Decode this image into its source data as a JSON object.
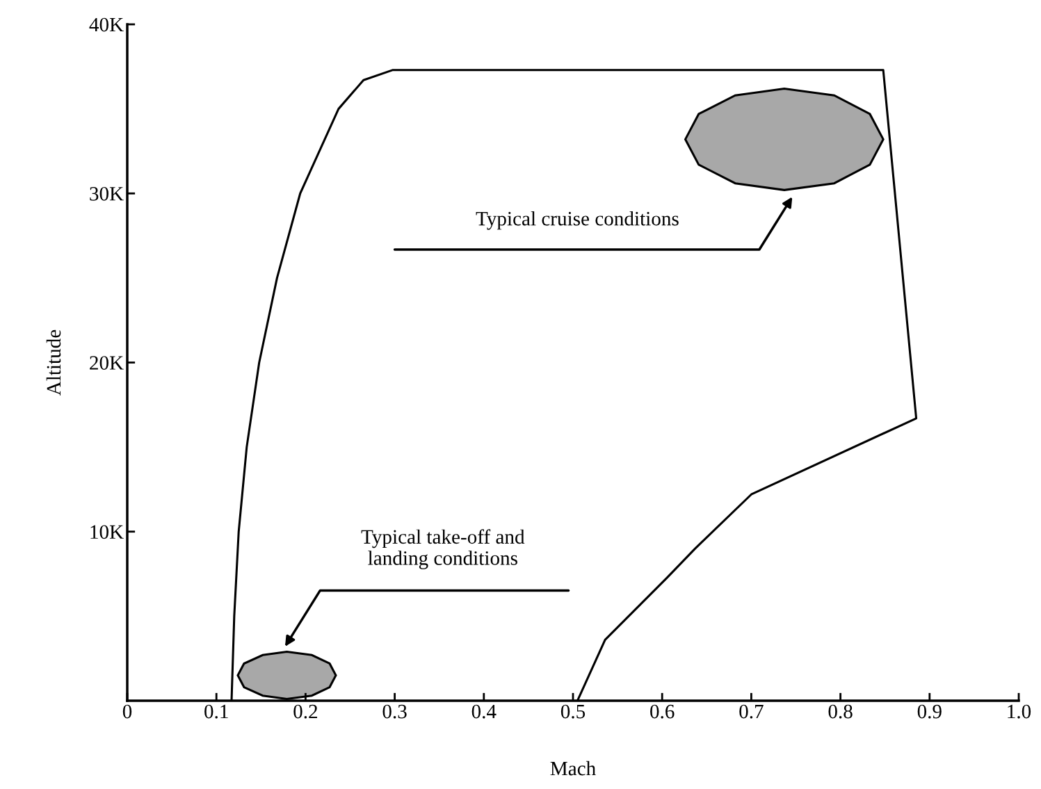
{
  "chart_data": {
    "type": "line",
    "xlabel": "Mach",
    "ylabel": "Altitude",
    "xlim": [
      0,
      1.0
    ],
    "ylim": [
      0,
      40000
    ],
    "xticks": [
      0,
      0.1,
      0.2,
      0.3,
      0.4,
      0.5,
      0.6,
      0.7,
      0.8,
      0.9,
      {
        "value": 1.0,
        "label": "1.0"
      }
    ],
    "yticks": [
      {
        "value": 10000,
        "label": "10K"
      },
      {
        "value": 20000,
        "label": "20K"
      },
      {
        "value": 30000,
        "label": "30K"
      },
      {
        "value": 40000,
        "label": "40K"
      }
    ],
    "grid": false,
    "legend": false,
    "marker": "none",
    "line_style": "solid",
    "series": [
      {
        "color": "#000000",
        "x": [
          0.117,
          0.12,
          0.125,
          0.134,
          0.148,
          0.168,
          0.194,
          0.237,
          0.265,
          0.298,
          0.848,
          0.885,
          0.7,
          0.637,
          0.606,
          0.536,
          0.505
        ],
        "values": [
          0,
          5000,
          10000,
          15000,
          20000,
          25000,
          30000,
          35000,
          36700,
          37300,
          37300,
          16700,
          12200,
          9000,
          7300,
          3600,
          0
        ]
      },
      {
        "type": "area",
        "color": "#a8a8a8",
        "x": [
          0.848,
          0.833,
          0.793,
          0.737,
          0.682,
          0.641,
          0.626,
          0.641,
          0.682,
          0.737,
          0.793,
          0.833,
          0.848
        ],
        "values": [
          33200,
          34700,
          35800,
          36200,
          35800,
          34700,
          33200,
          31700,
          30600,
          30200,
          30600,
          31700,
          33200
        ]
      },
      {
        "type": "area",
        "color": "#a8a8a8",
        "x": [
          0.234,
          0.227,
          0.207,
          0.179,
          0.152,
          0.131,
          0.124,
          0.131,
          0.152,
          0.179,
          0.207,
          0.227,
          0.234
        ],
        "values": [
          1500,
          2200,
          2700,
          2900,
          2700,
          2200,
          1500,
          800,
          300,
          100,
          300,
          800,
          1500
        ]
      }
    ],
    "annotations": [
      "Typical cruise conditions",
      "Typical take-off and\nlanding conditions"
    ]
  }
}
